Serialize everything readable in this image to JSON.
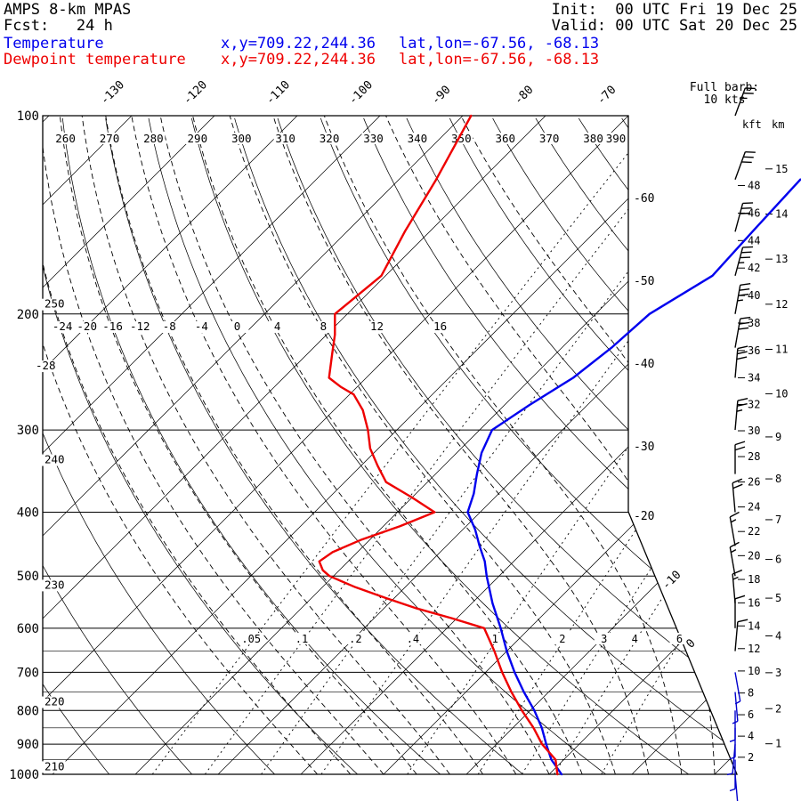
{
  "header": {
    "model": "AMPS 8-km MPAS",
    "fcst": "Fcst:   24 h",
    "init": "Init:  00 UTC Fri 19 Dec 25",
    "valid": "Valid: 00 UTC Sat 20 Dec 25",
    "temperature_legend": {
      "label": "Temperature",
      "xy": "x,y=709.22,244.36",
      "latlon": "lat,lon=-67.56, -68.13"
    },
    "dewpoint_legend": {
      "label": "Dewpoint temperature",
      "xy": "x,y=709.22,244.36",
      "latlon": "lat,lon=-67.56, -68.13"
    },
    "barb_key_line1": "Full barb:",
    "barb_key_line2": "10 kts"
  },
  "colors": {
    "temperature": "#0000ee",
    "dewpoint": "#ee0000",
    "grid": "#000000",
    "barb_high": "#000000",
    "barb_low": "#0000cc"
  },
  "chart_data": {
    "type": "line",
    "subtype": "skew-t-log-p-sounding",
    "pressure_unit": "hPa",
    "temperature_unit": "C",
    "pressure_ticks_hpa": [
      100,
      200,
      300,
      400,
      500,
      600,
      700,
      800,
      900,
      1000
    ],
    "pressure_minor_ticks_hpa": [
      650,
      750,
      850,
      950
    ],
    "isotherm_step_c": 10,
    "isotherm_top_labels_c": [
      -130,
      -120,
      -110,
      -100,
      -90,
      -80,
      -70
    ],
    "isotherm_right_labels_c": [
      -60,
      -50,
      -40,
      -30,
      -20
    ],
    "isotherm_slant_labels_c": [
      -10,
      0
    ],
    "dry_adiabat_top_labels_k": [
      260,
      270,
      280,
      290,
      300,
      310,
      320,
      330,
      340,
      350,
      360,
      370,
      380,
      390
    ],
    "dry_adiabat_left_labels_k": [
      250,
      240,
      230,
      220,
      210
    ],
    "moist_adiabat_labels_c": [
      -28,
      -24,
      -20,
      -16,
      -12,
      -8,
      -4,
      0,
      4,
      8,
      12,
      16
    ],
    "mixing_ratio_lines_gkg": [
      0.05,
      0.1,
      0.2,
      0.4,
      1,
      2,
      3,
      4,
      6
    ],
    "mixing_ratio_label_texts": [
      ".05",
      ".1",
      ".2",
      ".4",
      "1",
      "2",
      "3",
      "4",
      "6"
    ],
    "height_axis": {
      "kft_title": "kft",
      "km_title": "km",
      "kft_ticks": [
        2,
        4,
        6,
        8,
        10,
        12,
        14,
        16,
        18,
        20,
        22,
        24,
        26,
        28,
        30,
        32,
        34,
        36,
        38,
        40,
        42,
        44,
        46,
        48
      ],
      "km_ticks": [
        1,
        2,
        3,
        4,
        5,
        6,
        7,
        8,
        9,
        10,
        11,
        12,
        13,
        14,
        15
      ]
    },
    "temperature_profile": [
      [
        125,
        -41.5
      ],
      [
        150,
        -41
      ],
      [
        175,
        -40.5
      ],
      [
        200,
        -43.5
      ],
      [
        225,
        -44
      ],
      [
        250,
        -45
      ],
      [
        275,
        -47
      ],
      [
        300,
        -48.5
      ],
      [
        325,
        -47
      ],
      [
        350,
        -45
      ],
      [
        375,
        -43
      ],
      [
        400,
        -41.5
      ],
      [
        425,
        -38.5
      ],
      [
        450,
        -36
      ],
      [
        475,
        -33.5
      ],
      [
        500,
        -31.5
      ],
      [
        550,
        -27.5
      ],
      [
        600,
        -23.5
      ],
      [
        650,
        -20
      ],
      [
        700,
        -16.5
      ],
      [
        750,
        -13
      ],
      [
        800,
        -9.5
      ],
      [
        850,
        -6.5
      ],
      [
        900,
        -4
      ],
      [
        950,
        -1.5
      ],
      [
        1000,
        1.5
      ]
    ],
    "dewpoint_profile": [
      [
        100,
        -89
      ],
      [
        125,
        -85.5
      ],
      [
        150,
        -83
      ],
      [
        175,
        -80.5
      ],
      [
        200,
        -81.5
      ],
      [
        215,
        -79
      ],
      [
        230,
        -77
      ],
      [
        250,
        -74.5
      ],
      [
        258,
        -72
      ],
      [
        265,
        -69.5
      ],
      [
        280,
        -66.5
      ],
      [
        300,
        -63.5
      ],
      [
        320,
        -61
      ],
      [
        340,
        -58
      ],
      [
        360,
        -55
      ],
      [
        380,
        -50
      ],
      [
        400,
        -45.5
      ],
      [
        420,
        -48
      ],
      [
        440,
        -51
      ],
      [
        460,
        -53
      ],
      [
        475,
        -53.5
      ],
      [
        490,
        -52
      ],
      [
        500,
        -50.5
      ],
      [
        520,
        -46
      ],
      [
        540,
        -41
      ],
      [
        560,
        -36
      ],
      [
        580,
        -30.5
      ],
      [
        600,
        -25.5
      ],
      [
        650,
        -21.5
      ],
      [
        700,
        -18
      ],
      [
        750,
        -14.5
      ],
      [
        800,
        -11
      ],
      [
        850,
        -7.5
      ],
      [
        900,
        -4.5
      ],
      [
        950,
        -1
      ],
      [
        1000,
        1
      ]
    ],
    "wind_barbs": {
      "full_barb_kts": 10,
      "blue_below_hpa": 700,
      "levels": [
        [
          100,
          25,
          20
        ],
        [
          125,
          30,
          20
        ],
        [
          150,
          30,
          15
        ],
        [
          175,
          35,
          15
        ],
        [
          200,
          35,
          10
        ],
        [
          225,
          30,
          10
        ],
        [
          250,
          30,
          5
        ],
        [
          300,
          25,
          5
        ],
        [
          350,
          20,
          0
        ],
        [
          400,
          20,
          355
        ],
        [
          450,
          15,
          350
        ],
        [
          500,
          15,
          350
        ],
        [
          550,
          15,
          355
        ],
        [
          600,
          10,
          0
        ],
        [
          650,
          10,
          5
        ],
        [
          700,
          5,
          170
        ],
        [
          750,
          5,
          175
        ],
        [
          800,
          5,
          180
        ],
        [
          850,
          5,
          180
        ],
        [
          900,
          5,
          185
        ],
        [
          950,
          5,
          180
        ],
        [
          1000,
          5,
          175
        ]
      ]
    }
  }
}
